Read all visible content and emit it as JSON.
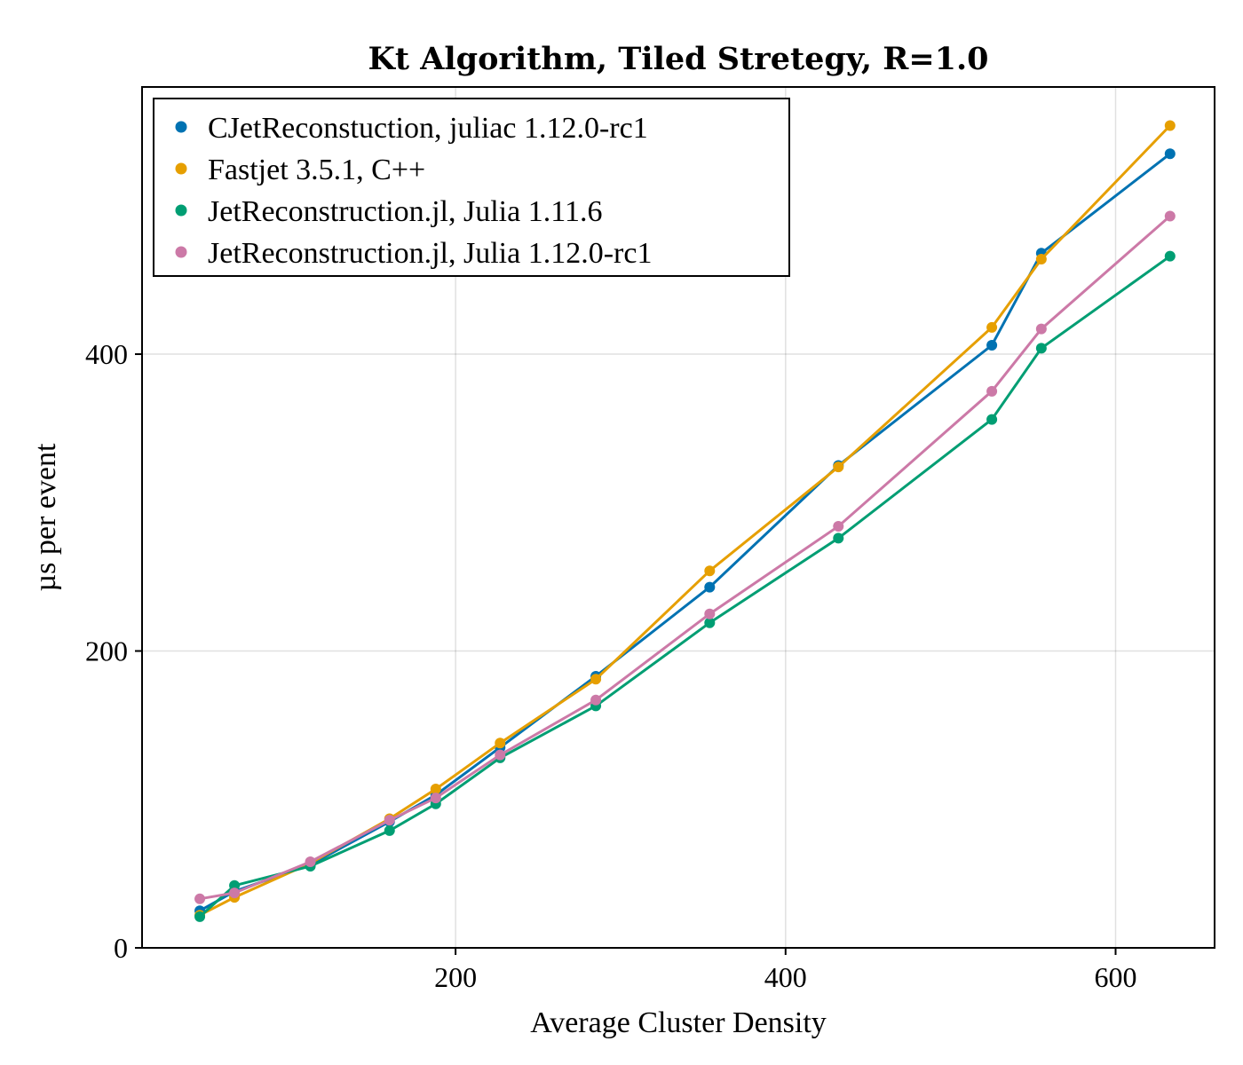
{
  "chart_data": {
    "type": "line",
    "title": "Kt Algorithm, Tiled Stretegy, R=1.0",
    "xlabel": "Average Cluster Density",
    "ylabel": "µs per event",
    "xlim": [
      10,
      660
    ],
    "ylim": [
      0,
      580
    ],
    "xticks": [
      200,
      400,
      600
    ],
    "yticks": [
      0,
      200,
      400
    ],
    "grid": true,
    "legend_position": "top-left",
    "series": [
      {
        "name": "CJetReconstuction, juliac 1.12.0-rc1",
        "color": "#0072b2",
        "x": [
          45,
          66,
          112,
          160,
          188,
          227,
          285,
          354,
          432,
          525,
          555,
          633
        ],
        "y": [
          25,
          38,
          56,
          85,
          103,
          135,
          183,
          243,
          325,
          406,
          468,
          535
        ]
      },
      {
        "name": "Fastjet 3.5.1, C++",
        "color": "#e69f00",
        "x": [
          45,
          66,
          112,
          160,
          188,
          227,
          285,
          354,
          432,
          525,
          555,
          633
        ],
        "y": [
          22,
          34,
          57,
          87,
          107,
          138,
          181,
          254,
          324,
          418,
          464,
          554
        ]
      },
      {
        "name": "JetReconstruction.jl, Julia 1.11.6",
        "color": "#009e73",
        "x": [
          45,
          66,
          112,
          160,
          188,
          227,
          285,
          354,
          432,
          525,
          555,
          633
        ],
        "y": [
          21,
          42,
          55,
          79,
          97,
          128,
          163,
          219,
          276,
          356,
          404,
          466
        ]
      },
      {
        "name": "JetReconstruction.jl, Julia 1.12.0-rc1",
        "color": "#cc79a7",
        "x": [
          45,
          66,
          112,
          160,
          188,
          227,
          285,
          354,
          432,
          525,
          555,
          633
        ],
        "y": [
          33,
          37,
          58,
          86,
          101,
          130,
          167,
          225,
          284,
          375,
          417,
          493
        ]
      }
    ]
  }
}
